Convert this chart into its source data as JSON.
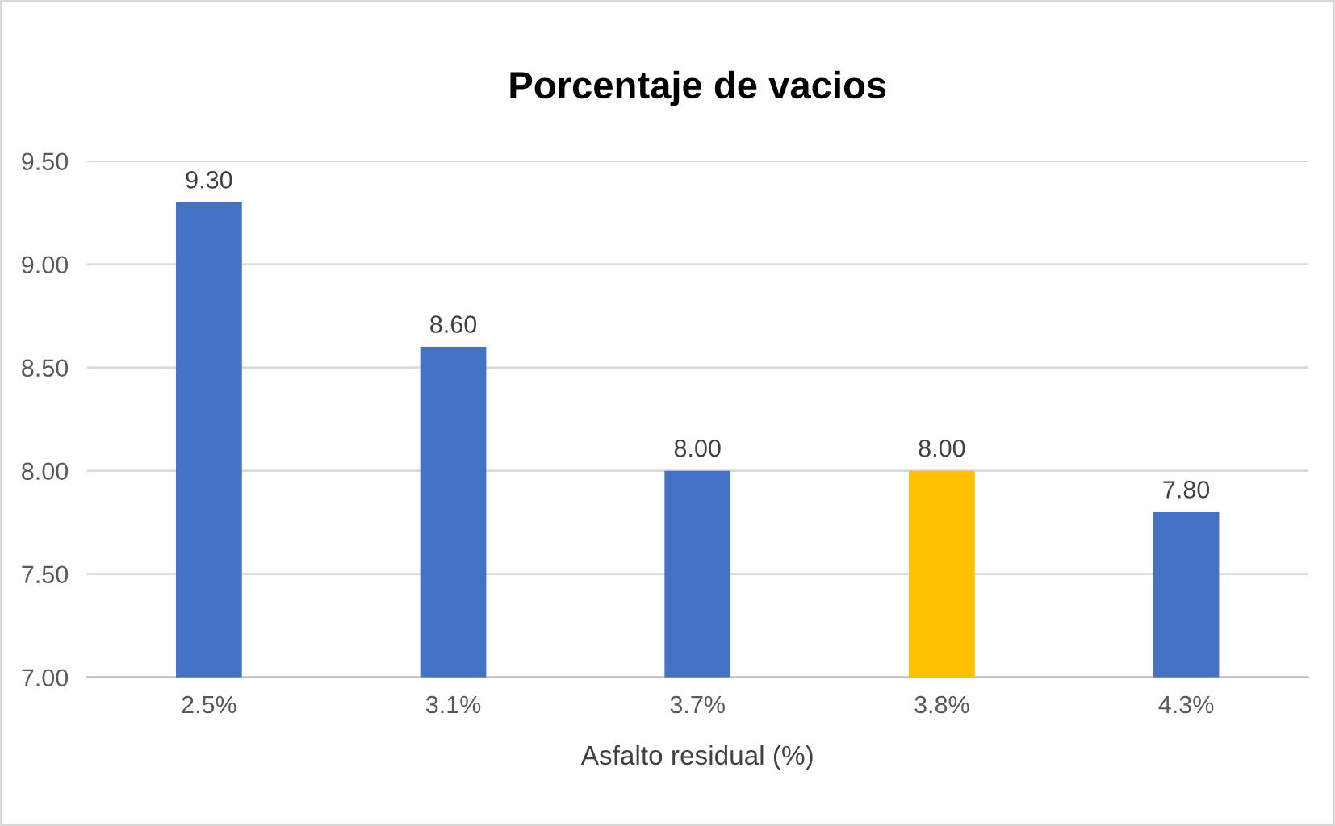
{
  "chart_data": {
    "type": "bar",
    "title": "Porcentaje de vacios",
    "xlabel": "Asfalto residual (%)",
    "categories": [
      "2.5%",
      "3.1%",
      "3.7%",
      "3.8%",
      "4.3%"
    ],
    "values": [
      9.3,
      8.6,
      8.0,
      8.0,
      7.8
    ],
    "colors": [
      "#4472c4",
      "#4472c4",
      "#4472c4",
      "#ffc000",
      "#4472c4"
    ],
    "value_labels": [
      "9.30",
      "8.60",
      "8.00",
      "8.00",
      "7.80"
    ],
    "ylim": [
      7,
      9.5
    ],
    "yticks": [
      {
        "value": 7,
        "label": "7.00"
      },
      {
        "value": 7.5,
        "label": "7.50"
      },
      {
        "value": 8,
        "label": "8.00"
      },
      {
        "value": 8.5,
        "label": "8.50"
      },
      {
        "value": 9,
        "label": "9.00"
      },
      {
        "value": 9.5,
        "label": "9.50"
      }
    ],
    "grid": "y"
  }
}
